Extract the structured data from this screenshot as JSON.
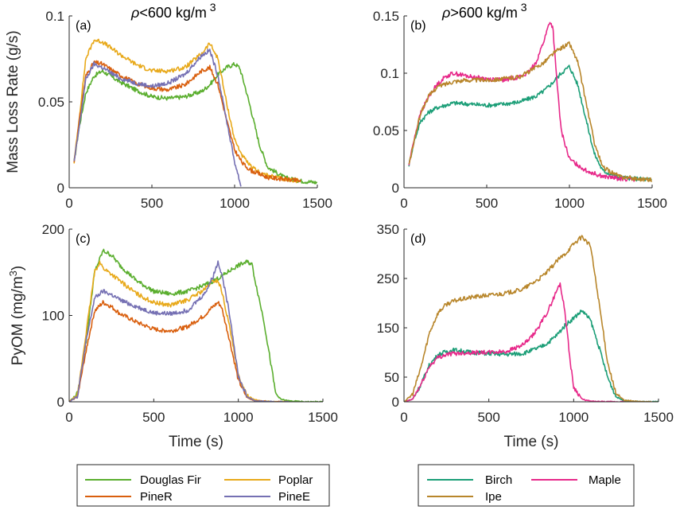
{
  "chart_data": [
    {
      "panel": "(a)",
      "type": "line",
      "title": "ρ<600 kg/m 3",
      "ylabel": "Mass Loss Rate (g/s)",
      "xlabel": "",
      "xlim": [
        0,
        1500
      ],
      "ylim": [
        0,
        0.1
      ],
      "xticks": [
        0,
        500,
        1000,
        1500
      ],
      "xticklabels": [
        "0",
        "500",
        "1000",
        "1500"
      ],
      "yticks": [
        0,
        0.05,
        0.1
      ],
      "yticklabels": [
        "0",
        "0.05",
        "0.1"
      ],
      "grid": false,
      "series": [
        {
          "name": "Douglas Fir",
          "color": "#5aae2e",
          "x": [
            30,
            60,
            100,
            150,
            200,
            300,
            400,
            500,
            600,
            700,
            800,
            850,
            900,
            950,
            1000,
            1030,
            1060,
            1100,
            1150,
            1200,
            1300,
            1400,
            1500
          ],
          "y": [
            0.015,
            0.035,
            0.055,
            0.065,
            0.068,
            0.062,
            0.057,
            0.053,
            0.052,
            0.053,
            0.056,
            0.06,
            0.066,
            0.07,
            0.072,
            0.07,
            0.06,
            0.045,
            0.025,
            0.012,
            0.006,
            0.004,
            0.003
          ]
        },
        {
          "name": "Poplar",
          "color": "#e8a91a",
          "x": [
            30,
            60,
            100,
            150,
            200,
            300,
            400,
            500,
            600,
            700,
            800,
            850,
            900,
            950,
            1000,
            1050,
            1100,
            1150,
            1200,
            1300,
            1400
          ],
          "y": [
            0.015,
            0.04,
            0.075,
            0.086,
            0.085,
            0.078,
            0.072,
            0.068,
            0.068,
            0.07,
            0.078,
            0.084,
            0.075,
            0.05,
            0.028,
            0.018,
            0.012,
            0.009,
            0.007,
            0.005,
            0.004
          ]
        },
        {
          "name": "PineR",
          "color": "#d95f0e",
          "x": [
            30,
            60,
            100,
            150,
            200,
            300,
            400,
            500,
            600,
            700,
            800,
            850,
            900,
            950,
            1000,
            1050,
            1100,
            1150,
            1200,
            1300,
            1400
          ],
          "y": [
            0.015,
            0.038,
            0.065,
            0.073,
            0.072,
            0.066,
            0.061,
            0.058,
            0.057,
            0.06,
            0.068,
            0.07,
            0.06,
            0.04,
            0.022,
            0.014,
            0.01,
            0.008,
            0.006,
            0.005,
            0.004
          ]
        },
        {
          "name": "PineE",
          "color": "#7570b3",
          "x": [
            30,
            60,
            100,
            150,
            200,
            300,
            400,
            500,
            600,
            700,
            800,
            850,
            900,
            950,
            1000,
            1020,
            1040
          ],
          "y": [
            0.015,
            0.035,
            0.063,
            0.072,
            0.07,
            0.064,
            0.061,
            0.059,
            0.061,
            0.066,
            0.077,
            0.08,
            0.065,
            0.04,
            0.015,
            0.008,
            0.0
          ]
        }
      ]
    },
    {
      "panel": "(b)",
      "type": "line",
      "title": "ρ>600 kg/m 3",
      "ylabel": "",
      "xlabel": "",
      "xlim": [
        0,
        1500
      ],
      "ylim": [
        0,
        0.15
      ],
      "xticks": [
        0,
        500,
        1000,
        1500
      ],
      "xticklabels": [
        "0",
        "500",
        "1000",
        "1500"
      ],
      "yticks": [
        0,
        0.05,
        0.1,
        0.15
      ],
      "yticklabels": [
        "0",
        "0.05",
        "0.1",
        "0.15"
      ],
      "grid": false,
      "series": [
        {
          "name": "Birch",
          "color": "#1b9e77",
          "x": [
            30,
            60,
            100,
            150,
            200,
            300,
            400,
            500,
            600,
            700,
            800,
            850,
            900,
            950,
            1000,
            1050,
            1100,
            1150,
            1200,
            1300,
            1400,
            1500
          ],
          "y": [
            0.02,
            0.04,
            0.058,
            0.066,
            0.07,
            0.074,
            0.073,
            0.072,
            0.073,
            0.075,
            0.08,
            0.085,
            0.092,
            0.1,
            0.106,
            0.09,
            0.06,
            0.03,
            0.015,
            0.009,
            0.008,
            0.007
          ]
        },
        {
          "name": "Maple",
          "color": "#e7298a",
          "x": [
            30,
            60,
            100,
            150,
            200,
            250,
            300,
            400,
            500,
            600,
            700,
            750,
            800,
            850,
            880,
            900,
            920,
            950,
            1000,
            1100,
            1200,
            1300,
            1400
          ],
          "y": [
            0.02,
            0.042,
            0.065,
            0.08,
            0.09,
            0.097,
            0.1,
            0.097,
            0.095,
            0.094,
            0.097,
            0.1,
            0.11,
            0.13,
            0.145,
            0.14,
            0.1,
            0.05,
            0.025,
            0.015,
            0.01,
            0.008,
            0.007
          ]
        },
        {
          "name": "Ipe",
          "color": "#b8862b",
          "x": [
            30,
            60,
            100,
            150,
            200,
            300,
            400,
            500,
            600,
            700,
            800,
            850,
            900,
            950,
            1000,
            1050,
            1100,
            1150,
            1200,
            1300,
            1400,
            1500
          ],
          "y": [
            0.02,
            0.04,
            0.065,
            0.08,
            0.088,
            0.093,
            0.094,
            0.094,
            0.095,
            0.097,
            0.105,
            0.11,
            0.117,
            0.122,
            0.126,
            0.11,
            0.075,
            0.04,
            0.018,
            0.01,
            0.008,
            0.007
          ]
        }
      ]
    },
    {
      "panel": "(c)",
      "type": "line",
      "ylabel": "PyOM (mg/m 3)",
      "xlabel": "Time (s)",
      "xlim": [
        0,
        1500
      ],
      "ylim": [
        0,
        200
      ],
      "xticks": [
        0,
        500,
        1000,
        1500
      ],
      "xticklabels": [
        "0",
        "500",
        "1000",
        "1500"
      ],
      "yticks": [
        0,
        100,
        200
      ],
      "yticklabels": [
        "0",
        "100",
        "200"
      ],
      "grid": false,
      "series": [
        {
          "name": "Douglas Fir",
          "color": "#5aae2e",
          "x": [
            0,
            50,
            100,
            150,
            200,
            250,
            300,
            400,
            500,
            600,
            700,
            800,
            900,
            950,
            1000,
            1050,
            1080,
            1100,
            1150,
            1200,
            1220,
            1250,
            1300,
            1400,
            1500
          ],
          "y": [
            0,
            10,
            70,
            150,
            175,
            170,
            158,
            140,
            128,
            125,
            128,
            135,
            145,
            152,
            158,
            162,
            160,
            140,
            95,
            35,
            10,
            3,
            1,
            0,
            0
          ]
        },
        {
          "name": "Poplar",
          "color": "#e8a91a",
          "x": [
            0,
            50,
            100,
            150,
            180,
            200,
            250,
            300,
            400,
            500,
            600,
            700,
            800,
            850,
            880,
            900,
            950,
            1000,
            1050,
            1100,
            1200,
            1300
          ],
          "y": [
            0,
            8,
            80,
            150,
            162,
            155,
            148,
            140,
            125,
            115,
            112,
            118,
            130,
            140,
            140,
            130,
            85,
            30,
            8,
            2,
            0,
            0
          ]
        },
        {
          "name": "PineR",
          "color": "#d95f0e",
          "x": [
            0,
            50,
            100,
            150,
            200,
            250,
            300,
            400,
            500,
            600,
            700,
            800,
            850,
            880,
            900,
            950,
            1000,
            1050,
            1100,
            1200,
            1300
          ],
          "y": [
            0,
            6,
            60,
            105,
            115,
            110,
            102,
            92,
            84,
            82,
            87,
            100,
            110,
            115,
            110,
            70,
            25,
            5,
            1,
            0,
            0
          ]
        },
        {
          "name": "PineE",
          "color": "#7570b3",
          "x": [
            0,
            50,
            100,
            150,
            200,
            250,
            300,
            400,
            500,
            600,
            700,
            800,
            850,
            880,
            900,
            950,
            1000,
            1050,
            1100,
            1200,
            1300
          ],
          "y": [
            0,
            7,
            70,
            120,
            128,
            124,
            118,
            110,
            103,
            102,
            106,
            125,
            145,
            162,
            150,
            100,
            30,
            6,
            1,
            0,
            0
          ]
        }
      ]
    },
    {
      "panel": "(d)",
      "type": "line",
      "ylabel": "",
      "xlabel": "Time (s)",
      "xlim": [
        0,
        1500
      ],
      "ylim": [
        0,
        350
      ],
      "xticks": [
        0,
        500,
        1000,
        1500
      ],
      "xticklabels": [
        "0",
        "500",
        "1000",
        "1500"
      ],
      "yticks": [
        0,
        50,
        150,
        250,
        350
      ],
      "yticklabels": [
        "0",
        "50",
        "150",
        "250",
        "350"
      ],
      "grid": false,
      "series": [
        {
          "name": "Birch",
          "color": "#1b9e77",
          "x": [
            0,
            50,
            100,
            150,
            200,
            250,
            300,
            400,
            500,
            600,
            700,
            800,
            850,
            900,
            950,
            1000,
            1050,
            1100,
            1150,
            1200,
            1250,
            1300,
            1400,
            1500
          ],
          "y": [
            0,
            5,
            35,
            75,
            95,
            102,
            105,
            100,
            98,
            96,
            98,
            110,
            120,
            135,
            155,
            170,
            185,
            165,
            110,
            50,
            10,
            2,
            0,
            0
          ]
        },
        {
          "name": "Maple",
          "color": "#e7298a",
          "x": [
            0,
            50,
            100,
            150,
            200,
            250,
            300,
            400,
            500,
            600,
            700,
            750,
            800,
            850,
            900,
            920,
            950,
            980,
            1000,
            1050,
            1100,
            1200,
            1300
          ],
          "y": [
            0,
            5,
            35,
            72,
            90,
            96,
            98,
            100,
            100,
            102,
            115,
            130,
            155,
            185,
            225,
            240,
            180,
            80,
            30,
            5,
            1,
            0,
            0
          ]
        },
        {
          "name": "Ipe",
          "color": "#b8862b",
          "x": [
            0,
            50,
            100,
            150,
            200,
            250,
            300,
            400,
            500,
            600,
            700,
            800,
            850,
            900,
            950,
            1000,
            1050,
            1100,
            1150,
            1200,
            1250,
            1300,
            1400,
            1500
          ],
          "y": [
            0,
            15,
            70,
            140,
            180,
            198,
            205,
            212,
            216,
            220,
            228,
            250,
            265,
            285,
            300,
            320,
            335,
            315,
            200,
            80,
            15,
            3,
            0,
            0
          ]
        }
      ]
    }
  ],
  "legends": [
    {
      "entries": [
        {
          "label": "Douglas Fir",
          "color": "#5aae2e"
        },
        {
          "label": "Poplar",
          "color": "#e8a91a"
        },
        {
          "label": "PineR",
          "color": "#d95f0e"
        },
        {
          "label": "PineE",
          "color": "#7570b3"
        }
      ]
    },
    {
      "entries": [
        {
          "label": "Birch",
          "color": "#1b9e77"
        },
        {
          "label": "Maple",
          "color": "#e7298a"
        },
        {
          "label": "Ipe",
          "color": "#b8862b"
        }
      ]
    }
  ]
}
